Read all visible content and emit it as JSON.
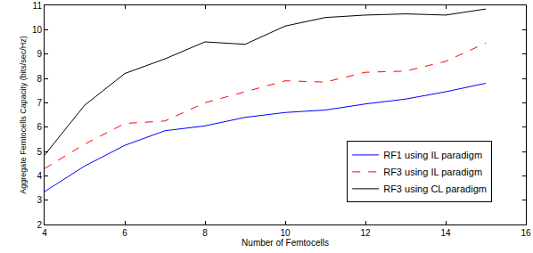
{
  "chart_data": {
    "type": "line",
    "x_label": "Number of Femtocells",
    "y_label": "Aggregate Femtocells Capacity (bits/sec/Hz)",
    "x": [
      4,
      5,
      6,
      7,
      8,
      9,
      10,
      11,
      12,
      13,
      14,
      15
    ],
    "series": [
      {
        "name": "RF1 using IL paradigm",
        "color": "#0000ff",
        "line_style": "solid",
        "values": [
          3.35,
          4.4,
          5.25,
          5.85,
          6.05,
          6.4,
          6.6,
          6.7,
          6.95,
          7.15,
          7.45,
          7.8
        ]
      },
      {
        "name": "RF3 using IL paradigm",
        "color": "#ff0000",
        "line_style": "dash",
        "values": [
          4.3,
          5.3,
          6.15,
          6.25,
          7.0,
          7.45,
          7.9,
          7.85,
          8.25,
          8.3,
          8.7,
          9.45
        ]
      },
      {
        "name": "RF3 using CL paradigm",
        "color": "#000000",
        "line_style": "solid",
        "values": [
          4.85,
          6.9,
          8.2,
          8.8,
          9.5,
          9.4,
          10.15,
          10.5,
          10.6,
          10.65,
          10.6,
          10.85
        ]
      }
    ],
    "xlim": [
      4,
      16
    ],
    "xticks": [
      4,
      6,
      8,
      10,
      12,
      14,
      16
    ],
    "ylim": [
      2,
      11
    ],
    "yticks": [
      2,
      3,
      4,
      5,
      6,
      7,
      8,
      9,
      10,
      11
    ],
    "grid": false,
    "legend": "lower right"
  }
}
